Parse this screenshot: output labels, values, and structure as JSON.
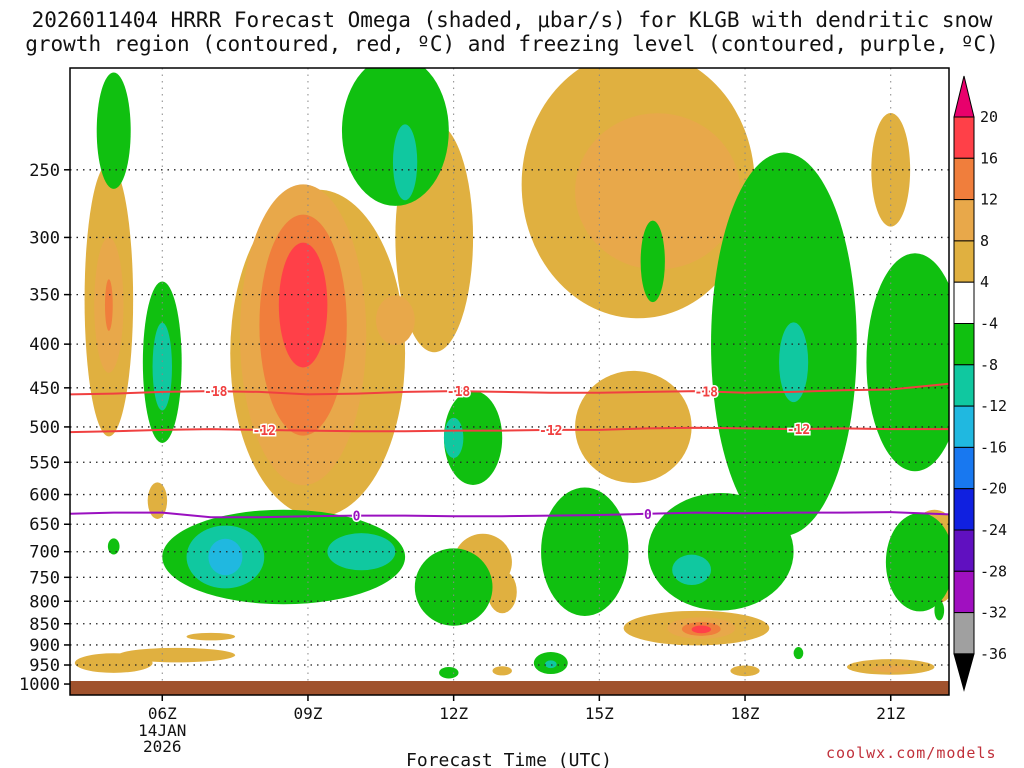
{
  "title_line1": "2026011404 HRRR Forecast Omega (shaded, μbar/s) for KLGB with dendritic snow",
  "title_line2": "growth region (contoured, red, ºC) and freezing level (contoured, purple, ºC)",
  "credit": "coolwx.com/models",
  "chart_data": {
    "type": "time-height cross section (filled contours + line contours)",
    "title": "2026011404 HRRR Forecast Omega (shaded, μbar/s) for KLGB with dendritic snow growth region (contoured, red, ºC) and freezing level (contoured, purple, ºC)",
    "xlabel": "Forecast Time (UTC)",
    "ylabel": "",
    "x_range_hours_utc": [
      4.1,
      22.2
    ],
    "y_range_hPa": [
      1030,
      190
    ],
    "x_ticks": [
      {
        "hour": 6,
        "label": "06Z",
        "sub": [
          "14JAN",
          "2026"
        ]
      },
      {
        "hour": 9,
        "label": "09Z"
      },
      {
        "hour": 12,
        "label": "12Z"
      },
      {
        "hour": 15,
        "label": "15Z"
      },
      {
        "hour": 18,
        "label": "18Z"
      },
      {
        "hour": 21,
        "label": "21Z"
      }
    ],
    "y_ticks": [
      250,
      300,
      350,
      400,
      450,
      500,
      550,
      600,
      650,
      700,
      750,
      800,
      850,
      900,
      950,
      1000
    ],
    "colorbar": {
      "levels": [
        20,
        16,
        12,
        8,
        4,
        -4,
        -8,
        -12,
        -16,
        -20,
        -24,
        -28,
        -32,
        -36
      ],
      "colors": {
        "gt20": "#e8006c",
        "16_20": "#ff4048",
        "12_16": "#f07e3c",
        "8_12": "#e8a84a",
        "4_8": "#e0b040",
        "neg4_4": "#ffffff",
        "neg8_neg4": "#10c010",
        "neg12_neg8": "#10c8a0",
        "neg16_neg12": "#20b8e0",
        "neg20_neg16": "#1878f0",
        "neg24_neg20": "#1020e0",
        "neg28_neg24": "#6010c0",
        "neg32_neg28": "#a010c0",
        "neg36_neg32": "#a0a0a0",
        "lt36": "#000000"
      }
    },
    "dendritic_contours": [
      {
        "level_C": -18,
        "label": "-18",
        "color": "#f04040",
        "points_hour_hPa": [
          [
            4.1,
            458
          ],
          [
            5.0,
            457
          ],
          [
            6.0,
            455
          ],
          [
            7.0,
            454
          ],
          [
            8.0,
            455
          ],
          [
            9.0,
            458
          ],
          [
            10.0,
            457
          ],
          [
            11.0,
            455
          ],
          [
            12.0,
            454
          ],
          [
            13.0,
            455
          ],
          [
            14.0,
            456
          ],
          [
            15.0,
            456
          ],
          [
            16.0,
            455
          ],
          [
            17.0,
            454
          ],
          [
            18.0,
            456
          ],
          [
            19.0,
            455
          ],
          [
            20.0,
            453
          ],
          [
            21.0,
            452
          ],
          [
            22.2,
            445
          ]
        ],
        "label_hours": [
          7.1,
          12.1,
          17.2
        ]
      },
      {
        "level_C": -12,
        "label": "-12",
        "color": "#f04040",
        "points_hour_hPa": [
          [
            4.1,
            507
          ],
          [
            5.0,
            506
          ],
          [
            6.0,
            504
          ],
          [
            7.0,
            503
          ],
          [
            8.0,
            504
          ],
          [
            9.0,
            505
          ],
          [
            10.0,
            506
          ],
          [
            11.0,
            506
          ],
          [
            12.0,
            505
          ],
          [
            13.0,
            505
          ],
          [
            14.0,
            504
          ],
          [
            15.0,
            504
          ],
          [
            16.0,
            502
          ],
          [
            17.0,
            501
          ],
          [
            18.0,
            502
          ],
          [
            19.0,
            503
          ],
          [
            20.0,
            502
          ],
          [
            21.0,
            503
          ],
          [
            22.2,
            503
          ]
        ],
        "label_hours": [
          8.1,
          14.0,
          19.1
        ]
      }
    ],
    "freezing_level_contour": {
      "level_C": 0,
      "label": "0",
      "color": "#9a10c0",
      "points_hour_hPa": [
        [
          4.1,
          632
        ],
        [
          5.0,
          630
        ],
        [
          6.0,
          630
        ],
        [
          7.0,
          638
        ],
        [
          8.0,
          638
        ],
        [
          9.0,
          636
        ],
        [
          10.0,
          635
        ],
        [
          11.0,
          635
        ],
        [
          12.0,
          636
        ],
        [
          13.0,
          636
        ],
        [
          14.0,
          635
        ],
        [
          15.0,
          634
        ],
        [
          16.0,
          632
        ],
        [
          17.0,
          630
        ],
        [
          18.0,
          631
        ],
        [
          19.0,
          630
        ],
        [
          20.0,
          630
        ],
        [
          21.0,
          629
        ],
        [
          22.2,
          633
        ]
      ],
      "label_hours": [
        10.0,
        16.0
      ]
    },
    "omega_regions": [
      {
        "band": "4_8",
        "center_hour": 4.9,
        "center_hPa": 355,
        "half_width_h": 0.5,
        "half_height_hPa": 125
      },
      {
        "band": "8_12",
        "center_hour": 4.9,
        "center_hPa": 360,
        "half_width_h": 0.3,
        "half_height_hPa": 65
      },
      {
        "band": "12_16",
        "center_hour": 4.9,
        "center_hPa": 360,
        "half_width_h": 0.08,
        "half_height_hPa": 25
      },
      {
        "band": "4_8",
        "center_hour": 9.2,
        "center_hPa": 410,
        "half_width_h": 1.8,
        "half_height_hPa": 170
      },
      {
        "band": "8_12",
        "center_hour": 8.9,
        "center_hPa": 390,
        "half_width_h": 1.3,
        "half_height_hPa": 150
      },
      {
        "band": "12_16",
        "center_hour": 8.9,
        "center_hPa": 380,
        "half_width_h": 0.9,
        "half_height_hPa": 110
      },
      {
        "band": "16_20",
        "center_hour": 8.9,
        "center_hPa": 360,
        "half_width_h": 0.5,
        "half_height_hPa": 60
      },
      {
        "band": "4_8",
        "center_hour": 11.6,
        "center_hPa": 300,
        "half_width_h": 0.8,
        "half_height_hPa": 90
      },
      {
        "band": "8_12",
        "center_hour": 10.8,
        "center_hPa": 375,
        "half_width_h": 0.4,
        "half_height_hPa": 25
      },
      {
        "band": "4_8",
        "center_hour": 15.8,
        "center_hPa": 260,
        "half_width_h": 2.4,
        "half_height_hPa": 90
      },
      {
        "band": "8_12",
        "center_hour": 16.2,
        "center_hPa": 265,
        "half_width_h": 1.7,
        "half_height_hPa": 55
      },
      {
        "band": "4_8",
        "center_hour": 15.7,
        "center_hPa": 500,
        "half_width_h": 1.2,
        "half_height_hPa": 75
      },
      {
        "band": "4_8",
        "center_hour": 21.0,
        "center_hPa": 250,
        "half_width_h": 0.4,
        "half_height_hPa": 38
      },
      {
        "band": "4_8",
        "center_hour": 12.6,
        "center_hPa": 720,
        "half_width_h": 0.6,
        "half_height_hPa": 55
      },
      {
        "band": "4_8",
        "center_hour": 13.0,
        "center_hPa": 780,
        "half_width_h": 0.3,
        "half_height_hPa": 45
      },
      {
        "band": "4_8",
        "center_hour": 17.0,
        "center_hPa": 860,
        "half_width_h": 1.5,
        "half_height_hPa": 40
      },
      {
        "band": "8_12",
        "center_hour": 17.1,
        "center_hPa": 860,
        "half_width_h": 0.7,
        "half_height_hPa": 25
      },
      {
        "band": "12_16",
        "center_hour": 17.1,
        "center_hPa": 862,
        "half_width_h": 0.4,
        "half_height_hPa": 16
      },
      {
        "band": "16_20",
        "center_hour": 17.1,
        "center_hPa": 863,
        "half_width_h": 0.2,
        "half_height_hPa": 9
      },
      {
        "band": "4_8",
        "center_hour": 6.3,
        "center_hPa": 925,
        "half_width_h": 1.2,
        "half_height_hPa": 18
      },
      {
        "band": "4_8",
        "center_hour": 5.0,
        "center_hPa": 945,
        "half_width_h": 0.8,
        "half_height_hPa": 25
      },
      {
        "band": "4_8",
        "center_hour": 7.0,
        "center_hPa": 880,
        "half_width_h": 0.5,
        "half_height_hPa": 9
      },
      {
        "band": "4_8",
        "center_hour": 5.9,
        "center_hPa": 610,
        "half_width_h": 0.2,
        "half_height_hPa": 30
      },
      {
        "band": "4_8",
        "center_hour": 21.0,
        "center_hPa": 955,
        "half_width_h": 0.9,
        "half_height_hPa": 20
      },
      {
        "band": "8_12",
        "center_hour": 21.0,
        "center_hPa": 960,
        "half_width_h": 0.4,
        "half_height_hPa": 9
      },
      {
        "band": "4_8",
        "center_hour": 21.9,
        "center_hPa": 710,
        "half_width_h": 0.6,
        "half_height_hPa": 90
      },
      {
        "band": "4_8",
        "center_hour": 18.0,
        "center_hPa": 965,
        "half_width_h": 0.3,
        "half_height_hPa": 14
      },
      {
        "band": "4_8",
        "center_hour": 13.0,
        "center_hPa": 965,
        "half_width_h": 0.2,
        "half_height_hPa": 12
      },
      {
        "band": "neg8_neg4",
        "center_hour": 5.0,
        "center_hPa": 225,
        "half_width_h": 0.35,
        "half_height_hPa": 35
      },
      {
        "band": "neg8_neg4",
        "center_hour": 10.8,
        "center_hPa": 225,
        "half_width_h": 1.1,
        "half_height_hPa": 45
      },
      {
        "band": "neg12_neg8",
        "center_hour": 11.0,
        "center_hPa": 245,
        "half_width_h": 0.25,
        "half_height_hPa": 25
      },
      {
        "band": "neg8_neg4",
        "center_hour": 6.0,
        "center_hPa": 420,
        "half_width_h": 0.4,
        "half_height_hPa": 90
      },
      {
        "band": "neg12_neg8",
        "center_hour": 6.0,
        "center_hPa": 425,
        "half_width_h": 0.2,
        "half_height_hPa": 50
      },
      {
        "band": "neg8_neg4",
        "center_hour": 12.4,
        "center_hPa": 515,
        "half_width_h": 0.6,
        "half_height_hPa": 65
      },
      {
        "band": "neg12_neg8",
        "center_hour": 12.0,
        "center_hPa": 515,
        "half_width_h": 0.2,
        "half_height_hPa": 28
      },
      {
        "band": "neg8_neg4",
        "center_hour": 18.8,
        "center_hPa": 400,
        "half_width_h": 1.5,
        "half_height_hPa": 190
      },
      {
        "band": "neg12_neg8",
        "center_hour": 19.0,
        "center_hPa": 420,
        "half_width_h": 0.3,
        "half_height_hPa": 45
      },
      {
        "band": "neg8_neg4",
        "center_hour": 21.5,
        "center_hPa": 420,
        "half_width_h": 1.0,
        "half_height_hPa": 120
      },
      {
        "band": "neg8_neg4",
        "center_hour": 16.1,
        "center_hPa": 320,
        "half_width_h": 0.25,
        "half_height_hPa": 35
      },
      {
        "band": "neg8_neg4",
        "center_hour": 8.5,
        "center_hPa": 710,
        "half_width_h": 2.5,
        "half_height_hPa": 90
      },
      {
        "band": "neg12_neg8",
        "center_hour": 7.3,
        "center_hPa": 710,
        "half_width_h": 0.8,
        "half_height_hPa": 60
      },
      {
        "band": "neg16_neg12",
        "center_hour": 7.3,
        "center_hPa": 710,
        "half_width_h": 0.35,
        "half_height_hPa": 35
      },
      {
        "band": "neg12_neg8",
        "center_hour": 10.1,
        "center_hPa": 700,
        "half_width_h": 0.7,
        "half_height_hPa": 35
      },
      {
        "band": "neg8_neg4",
        "center_hour": 12.0,
        "center_hPa": 770,
        "half_width_h": 0.8,
        "half_height_hPa": 80
      },
      {
        "band": "neg8_neg4",
        "center_hour": 14.7,
        "center_hPa": 700,
        "half_width_h": 0.9,
        "half_height_hPa": 120
      },
      {
        "band": "neg8_neg4",
        "center_hour": 17.5,
        "center_hPa": 700,
        "half_width_h": 1.5,
        "half_height_hPa": 110
      },
      {
        "band": "neg12_neg8",
        "center_hour": 16.9,
        "center_hPa": 735,
        "half_width_h": 0.4,
        "half_height_hPa": 30
      },
      {
        "band": "neg8_neg4",
        "center_hour": 21.6,
        "center_hPa": 720,
        "half_width_h": 0.7,
        "half_height_hPa": 95
      },
      {
        "band": "neg8_neg4",
        "center_hour": 5.0,
        "center_hPa": 690,
        "half_width_h": 0.12,
        "half_height_hPa": 15
      },
      {
        "band": "neg8_neg4",
        "center_hour": 11.9,
        "center_hPa": 970,
        "half_width_h": 0.2,
        "half_height_hPa": 15
      },
      {
        "band": "neg8_neg4",
        "center_hour": 14.0,
        "center_hPa": 945,
        "half_width_h": 0.35,
        "half_height_hPa": 28
      },
      {
        "band": "neg12_neg8",
        "center_hour": 14.0,
        "center_hPa": 948,
        "half_width_h": 0.12,
        "half_height_hPa": 10
      },
      {
        "band": "neg8_neg4",
        "center_hour": 19.1,
        "center_hPa": 920,
        "half_width_h": 0.1,
        "half_height_hPa": 15
      },
      {
        "band": "neg8_neg4",
        "center_hour": 22.0,
        "center_hPa": 820,
        "half_width_h": 0.1,
        "half_height_hPa": 22
      }
    ]
  }
}
